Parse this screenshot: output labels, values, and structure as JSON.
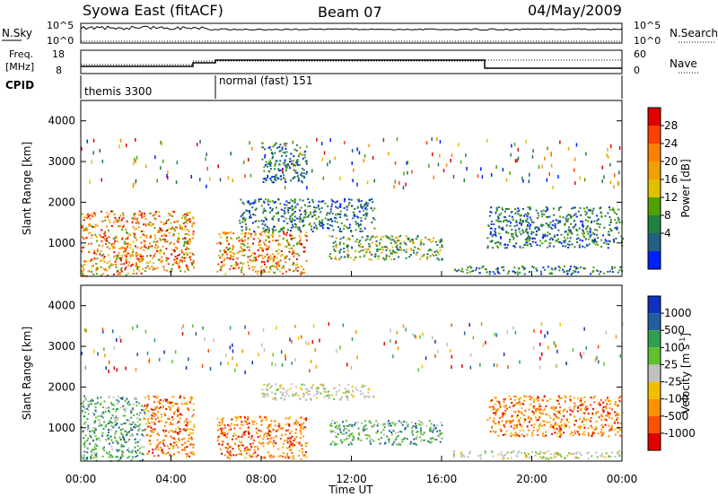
{
  "header": {
    "title": "Syowa East (fitACF)",
    "beam": "Beam 07",
    "date": "04/May/2009"
  },
  "top_panels": {
    "nsky_label": "N.Sky",
    "nsearch_label": "N.Search",
    "freq_label_line1": "Freq.",
    "freq_label_line2": "[MHz]",
    "nave_label": "Nave",
    "cpid_label": "CPID",
    "nsky_ticks": [
      "10^5",
      "10^0"
    ],
    "nsearch_ticks": [
      "10^5",
      "10^0"
    ],
    "freq_ticks": [
      "18",
      "8"
    ],
    "nave_ticks": [
      "60",
      "0"
    ],
    "cpid_segments": [
      {
        "label": "themis 3300",
        "start_hour": 0,
        "end_hour": 6
      },
      {
        "label": "normal (fast) 151",
        "start_hour": 6,
        "end_hour": 24
      }
    ]
  },
  "power_colorbar": {
    "label": "Power [dB]",
    "ticks": [
      "28",
      "24",
      "20",
      "16",
      "12",
      "8",
      "4"
    ],
    "colors": [
      "#e00000",
      "#ff4000",
      "#ff8000",
      "#f0a000",
      "#e0c000",
      "#50a000",
      "#208040",
      "#206080",
      "#0020ff"
    ]
  },
  "velocity_colorbar": {
    "label_main": "Velocity",
    "label_unit": "[m s",
    "label_exp": "-1",
    "label_close": "]",
    "ticks": [
      "1000",
      "500",
      "100",
      "25",
      "-25",
      "-100",
      "-500",
      "-1000"
    ],
    "colors": [
      "#1030c0",
      "#2060a0",
      "#30a050",
      "#60c030",
      "#c0c0c0",
      "#f0c000",
      "#ff9000",
      "#ff5000",
      "#e00000"
    ]
  },
  "chart_data": {
    "type": "heatmap",
    "xlabel": "Time UT",
    "ylabel": "Slant Range [km]",
    "x_ticks": [
      "00:00",
      "04:00",
      "08:00",
      "12:00",
      "16:00",
      "20:00",
      "00:00"
    ],
    "x_range_hours": [
      0,
      24
    ],
    "y_ticks": [
      1000,
      2000,
      3000,
      4000
    ],
    "y_range_km": [
      180,
      4500
    ],
    "panels": [
      {
        "name": "power",
        "colorbar_range_db": [
          0,
          30
        ],
        "echo_regions": [
          {
            "t0": 0.0,
            "t1": 2.8,
            "r0": 200,
            "r1": 1800,
            "level": "strong"
          },
          {
            "t0": 2.8,
            "t1": 5.0,
            "r0": 300,
            "r1": 1800,
            "level": "strong"
          },
          {
            "t0": 6.0,
            "t1": 10.0,
            "r0": 250,
            "r1": 1300,
            "level": "strong"
          },
          {
            "t0": 7.0,
            "t1": 13.0,
            "r0": 1300,
            "r1": 2100,
            "level": "weak"
          },
          {
            "t0": 11.0,
            "t1": 16.0,
            "r0": 600,
            "r1": 1200,
            "level": "medium"
          },
          {
            "t0": 8.0,
            "t1": 10.0,
            "r0": 2500,
            "r1": 3500,
            "level": "weak"
          },
          {
            "t0": 16.5,
            "t1": 24.0,
            "r0": 250,
            "r1": 450,
            "level": "weak"
          },
          {
            "t0": 18.0,
            "t1": 24.0,
            "r0": 900,
            "r1": 1900,
            "level": "weak"
          }
        ]
      },
      {
        "name": "velocity",
        "colorbar_range_ms": [
          -1000,
          1000
        ],
        "echo_regions": [
          {
            "t0": 0.0,
            "t1": 2.8,
            "r0": 200,
            "r1": 1800,
            "level": "positive"
          },
          {
            "t0": 2.8,
            "t1": 5.0,
            "r0": 300,
            "r1": 1800,
            "level": "negative"
          },
          {
            "t0": 6.0,
            "t1": 10.0,
            "r0": 250,
            "r1": 1300,
            "level": "negative"
          },
          {
            "t0": 8.0,
            "t1": 13.0,
            "r0": 1700,
            "r1": 2100,
            "level": "neutral"
          },
          {
            "t0": 11.0,
            "t1": 16.0,
            "r0": 600,
            "r1": 1200,
            "level": "positive"
          },
          {
            "t0": 16.5,
            "t1": 24.0,
            "r0": 250,
            "r1": 450,
            "level": "neutral"
          },
          {
            "t0": 18.0,
            "t1": 24.0,
            "r0": 800,
            "r1": 1800,
            "level": "negative"
          }
        ]
      }
    ]
  }
}
